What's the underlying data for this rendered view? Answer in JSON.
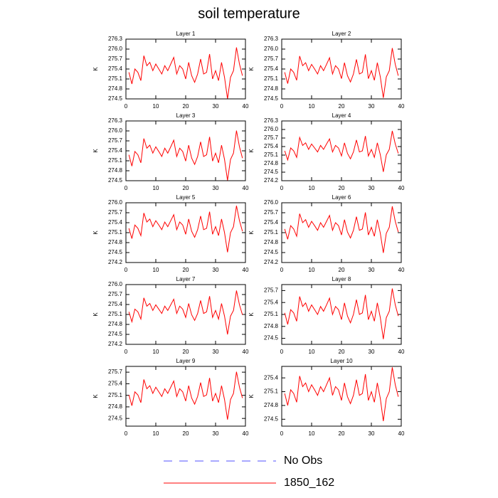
{
  "title": "soil temperature",
  "legend": [
    {
      "name": "No Obs",
      "color": "#5050ff",
      "dash": true
    },
    {
      "name": "1850_162",
      "color": "#ff0000",
      "dash": false
    }
  ],
  "chart_data": [
    {
      "type": "line",
      "title": "Layer 1",
      "ylabel": "K",
      "color": "#ff0000",
      "x": [
        1,
        2,
        3,
        4,
        5,
        6,
        7,
        8,
        9,
        10,
        11,
        12,
        13,
        14,
        15,
        16,
        17,
        18,
        19,
        20,
        21,
        22,
        23,
        24,
        25,
        26,
        27,
        28,
        29,
        30,
        31,
        32,
        33,
        34,
        35,
        36,
        37,
        38,
        39
      ],
      "values": [
        275.3,
        274.95,
        275.4,
        275.3,
        275.05,
        275.8,
        275.5,
        275.6,
        275.35,
        275.55,
        275.4,
        275.25,
        275.5,
        275.35,
        275.55,
        275.75,
        275.25,
        275.5,
        275.4,
        275.1,
        275.6,
        275.2,
        275.0,
        275.25,
        275.7,
        275.25,
        275.3,
        275.85,
        275.1,
        275.35,
        275.05,
        275.6,
        275.15,
        274.5,
        275.15,
        275.35,
        276.05,
        275.55,
        275.2
      ],
      "xlim": [
        0,
        40
      ],
      "xticks": [
        0,
        10,
        20,
        30,
        40
      ],
      "ylim": [
        274.5,
        276.3
      ],
      "yticks": [
        {
          "value": 274.5,
          "label": "274.5"
        },
        {
          "value": 274.8,
          "label": "274.8"
        },
        {
          "value": 275.1,
          "label": "275.1"
        },
        {
          "value": 275.4,
          "label": "275.4"
        },
        {
          "value": 275.7,
          "label": "275.7"
        },
        {
          "value": 276.0,
          "label": "276.0"
        },
        {
          "value": 276.3,
          "label": "276.3"
        }
      ]
    },
    {
      "type": "line",
      "title": "Layer 2",
      "ylabel": "K",
      "color": "#ff0000",
      "x": [
        1,
        2,
        3,
        4,
        5,
        6,
        7,
        8,
        9,
        10,
        11,
        12,
        13,
        14,
        15,
        16,
        17,
        18,
        19,
        20,
        21,
        22,
        23,
        24,
        25,
        26,
        27,
        28,
        29,
        30,
        31,
        32,
        33,
        34,
        35,
        36,
        37,
        38,
        39
      ],
      "values": [
        275.3,
        274.96,
        275.4,
        275.3,
        275.06,
        275.79,
        275.5,
        275.59,
        275.35,
        275.54,
        275.4,
        275.25,
        275.5,
        275.35,
        275.54,
        275.74,
        275.25,
        275.5,
        275.4,
        275.11,
        275.59,
        275.2,
        275.01,
        275.25,
        275.69,
        275.25,
        275.3,
        275.84,
        275.11,
        275.35,
        275.06,
        275.59,
        275.16,
        274.53,
        275.16,
        275.35,
        276.03,
        275.54,
        275.2
      ],
      "xlim": [
        0,
        40
      ],
      "xticks": [
        0,
        10,
        20,
        30,
        40
      ],
      "ylim": [
        274.5,
        276.3
      ],
      "yticks": [
        {
          "value": 274.5,
          "label": "274.5"
        },
        {
          "value": 274.8,
          "label": "274.8"
        },
        {
          "value": 275.1,
          "label": "275.1"
        },
        {
          "value": 275.4,
          "label": "275.4"
        },
        {
          "value": 275.7,
          "label": "275.7"
        },
        {
          "value": 276.0,
          "label": "276.0"
        },
        {
          "value": 276.3,
          "label": "276.3"
        }
      ]
    },
    {
      "type": "line",
      "title": "Layer 3",
      "ylabel": "K",
      "color": "#ff0000",
      "x": [
        1,
        2,
        3,
        4,
        5,
        6,
        7,
        8,
        9,
        10,
        11,
        12,
        13,
        14,
        15,
        16,
        17,
        18,
        19,
        20,
        21,
        22,
        23,
        24,
        25,
        26,
        27,
        28,
        29,
        30,
        31,
        32,
        33,
        34,
        35,
        36,
        37,
        38,
        39
      ],
      "values": [
        275.28,
        274.94,
        275.38,
        275.28,
        275.04,
        275.77,
        275.48,
        275.57,
        275.33,
        275.52,
        275.38,
        275.23,
        275.48,
        275.33,
        275.52,
        275.72,
        275.23,
        275.48,
        275.38,
        275.09,
        275.57,
        275.18,
        274.99,
        275.23,
        275.67,
        275.23,
        275.28,
        275.82,
        275.09,
        275.33,
        275.04,
        275.57,
        275.14,
        274.51,
        275.14,
        275.33,
        276.01,
        275.52,
        275.18
      ],
      "xlim": [
        0,
        40
      ],
      "xticks": [
        0,
        10,
        20,
        30,
        40
      ],
      "ylim": [
        274.5,
        276.3
      ],
      "yticks": [
        {
          "value": 274.5,
          "label": "274.5"
        },
        {
          "value": 274.8,
          "label": "274.8"
        },
        {
          "value": 275.1,
          "label": "275.1"
        },
        {
          "value": 275.4,
          "label": "275.4"
        },
        {
          "value": 275.7,
          "label": "275.7"
        },
        {
          "value": 276.0,
          "label": "276.0"
        },
        {
          "value": 276.3,
          "label": "276.3"
        }
      ]
    },
    {
      "type": "line",
      "title": "Layer 4",
      "ylabel": "K",
      "color": "#ff0000",
      "x": [
        1,
        2,
        3,
        4,
        5,
        6,
        7,
        8,
        9,
        10,
        11,
        12,
        13,
        14,
        15,
        16,
        17,
        18,
        19,
        20,
        21,
        22,
        23,
        24,
        25,
        26,
        27,
        28,
        29,
        30,
        31,
        32,
        33,
        34,
        35,
        36,
        37,
        38,
        39
      ],
      "values": [
        275.25,
        274.93,
        275.35,
        275.25,
        275.02,
        275.72,
        275.44,
        275.53,
        275.3,
        275.49,
        275.35,
        275.21,
        275.44,
        275.3,
        275.49,
        275.67,
        275.21,
        275.44,
        275.35,
        275.07,
        275.53,
        275.16,
        274.97,
        275.21,
        275.63,
        275.21,
        275.25,
        275.77,
        275.07,
        275.3,
        275.02,
        275.53,
        275.11,
        274.51,
        275.11,
        275.3,
        275.95,
        275.49,
        275.16
      ],
      "xlim": [
        0,
        40
      ],
      "xticks": [
        0,
        10,
        20,
        30,
        40
      ],
      "ylim": [
        274.2,
        276.3
      ],
      "yticks": [
        {
          "value": 274.2,
          "label": "274.2"
        },
        {
          "value": 274.5,
          "label": "274.5"
        },
        {
          "value": 274.8,
          "label": "274.8"
        },
        {
          "value": 275.1,
          "label": "275.1"
        },
        {
          "value": 275.4,
          "label": "275.4"
        },
        {
          "value": 275.7,
          "label": "275.7"
        },
        {
          "value": 276.0,
          "label": "276.0"
        },
        {
          "value": 276.3,
          "label": "276.3"
        }
      ]
    },
    {
      "type": "line",
      "title": "Layer 5",
      "ylabel": "K",
      "color": "#ff0000",
      "x": [
        1,
        2,
        3,
        4,
        5,
        6,
        7,
        8,
        9,
        10,
        11,
        12,
        13,
        14,
        15,
        16,
        17,
        18,
        19,
        20,
        21,
        22,
        23,
        24,
        25,
        26,
        27,
        28,
        29,
        30,
        31,
        32,
        33,
        34,
        35,
        36,
        37,
        38,
        39
      ],
      "values": [
        275.23,
        274.92,
        275.33,
        275.23,
        275.01,
        275.69,
        275.42,
        275.51,
        275.28,
        275.46,
        275.33,
        275.19,
        275.42,
        275.28,
        275.46,
        275.64,
        275.19,
        275.42,
        275.33,
        275.05,
        275.51,
        275.14,
        274.96,
        275.19,
        275.6,
        275.19,
        275.23,
        275.73,
        275.05,
        275.28,
        275.01,
        275.51,
        275.1,
        274.51,
        275.1,
        275.28,
        275.91,
        275.46,
        275.14
      ],
      "xlim": [
        0,
        40
      ],
      "xticks": [
        0,
        10,
        20,
        30,
        40
      ],
      "ylim": [
        274.2,
        276.0
      ],
      "yticks": [
        {
          "value": 274.2,
          "label": "274.2"
        },
        {
          "value": 274.5,
          "label": "274.5"
        },
        {
          "value": 274.8,
          "label": "274.8"
        },
        {
          "value": 275.1,
          "label": "275.1"
        },
        {
          "value": 275.4,
          "label": "275.4"
        },
        {
          "value": 275.7,
          "label": "275.7"
        },
        {
          "value": 276.0,
          "label": "276.0"
        }
      ]
    },
    {
      "type": "line",
      "title": "Layer 6",
      "ylabel": "K",
      "color": "#ff0000",
      "x": [
        1,
        2,
        3,
        4,
        5,
        6,
        7,
        8,
        9,
        10,
        11,
        12,
        13,
        14,
        15,
        16,
        17,
        18,
        19,
        20,
        21,
        22,
        23,
        24,
        25,
        26,
        27,
        28,
        29,
        30,
        31,
        32,
        33,
        34,
        35,
        36,
        37,
        38,
        39
      ],
      "values": [
        275.21,
        274.9,
        275.31,
        275.21,
        274.99,
        275.67,
        275.4,
        275.49,
        275.26,
        275.44,
        275.31,
        275.17,
        275.4,
        275.26,
        275.44,
        275.62,
        275.17,
        275.4,
        275.31,
        275.03,
        275.49,
        275.12,
        274.94,
        275.17,
        275.58,
        275.17,
        275.21,
        275.71,
        275.03,
        275.26,
        274.99,
        275.49,
        275.08,
        274.49,
        275.08,
        275.26,
        275.89,
        275.44,
        275.12
      ],
      "xlim": [
        0,
        40
      ],
      "xticks": [
        0,
        10,
        20,
        30,
        40
      ],
      "ylim": [
        274.2,
        276.0
      ],
      "yticks": [
        {
          "value": 274.2,
          "label": "274.2"
        },
        {
          "value": 274.5,
          "label": "274.5"
        },
        {
          "value": 274.8,
          "label": "274.8"
        },
        {
          "value": 275.1,
          "label": "275.1"
        },
        {
          "value": 275.4,
          "label": "275.4"
        },
        {
          "value": 275.7,
          "label": "275.7"
        },
        {
          "value": 276.0,
          "label": "276.0"
        }
      ]
    },
    {
      "type": "line",
      "title": "Layer 7",
      "ylabel": "K",
      "color": "#ff0000",
      "x": [
        1,
        2,
        3,
        4,
        5,
        6,
        7,
        8,
        9,
        10,
        11,
        12,
        13,
        14,
        15,
        16,
        17,
        18,
        19,
        20,
        21,
        22,
        23,
        24,
        25,
        26,
        27,
        28,
        29,
        30,
        31,
        32,
        33,
        34,
        35,
        36,
        37,
        38,
        39
      ],
      "values": [
        275.18,
        274.88,
        275.26,
        275.18,
        274.96,
        275.6,
        275.35,
        275.43,
        275.22,
        275.39,
        275.26,
        275.13,
        275.35,
        275.22,
        275.39,
        275.56,
        275.13,
        275.35,
        275.26,
        275.01,
        275.43,
        275.09,
        274.92,
        275.13,
        275.52,
        275.13,
        275.18,
        275.65,
        275.01,
        275.22,
        274.96,
        275.43,
        275.05,
        274.5,
        275.05,
        275.22,
        275.82,
        275.39,
        275.09
      ],
      "xlim": [
        0,
        40
      ],
      "xticks": [
        0,
        10,
        20,
        30,
        40
      ],
      "ylim": [
        274.2,
        276.0
      ],
      "yticks": [
        {
          "value": 274.2,
          "label": "274.2"
        },
        {
          "value": 274.5,
          "label": "274.5"
        },
        {
          "value": 274.8,
          "label": "274.8"
        },
        {
          "value": 275.1,
          "label": "275.1"
        },
        {
          "value": 275.4,
          "label": "275.4"
        },
        {
          "value": 275.7,
          "label": "275.7"
        },
        {
          "value": 276.0,
          "label": "276.0"
        }
      ]
    },
    {
      "type": "line",
      "title": "Layer 8",
      "ylabel": "K",
      "color": "#ff0000",
      "x": [
        1,
        2,
        3,
        4,
        5,
        6,
        7,
        8,
        9,
        10,
        11,
        12,
        13,
        14,
        15,
        16,
        17,
        18,
        19,
        20,
        21,
        22,
        23,
        24,
        25,
        26,
        27,
        28,
        29,
        30,
        31,
        32,
        33,
        34,
        35,
        36,
        37,
        38,
        39
      ],
      "values": [
        275.14,
        274.85,
        275.22,
        275.14,
        274.93,
        275.55,
        275.3,
        275.39,
        275.18,
        275.34,
        275.22,
        275.1,
        275.3,
        275.18,
        275.34,
        275.51,
        275.1,
        275.3,
        275.22,
        274.97,
        275.39,
        275.06,
        274.89,
        275.1,
        275.47,
        275.1,
        275.14,
        275.59,
        274.97,
        275.18,
        274.93,
        275.39,
        275.02,
        274.48,
        275.02,
        275.18,
        275.75,
        275.34,
        275.06
      ],
      "xlim": [
        0,
        40
      ],
      "xticks": [
        0,
        10,
        20,
        30,
        40
      ],
      "ylim": [
        274.35,
        275.85
      ],
      "yticks": [
        {
          "value": 274.5,
          "label": "274.5"
        },
        {
          "value": 274.8,
          "label": "274.8"
        },
        {
          "value": 275.1,
          "label": "275.1"
        },
        {
          "value": 275.4,
          "label": "275.4"
        },
        {
          "value": 275.7,
          "label": "275.7"
        }
      ]
    },
    {
      "type": "line",
      "title": "Layer 9",
      "ylabel": "K",
      "color": "#ff0000",
      "x": [
        1,
        2,
        3,
        4,
        5,
        6,
        7,
        8,
        9,
        10,
        11,
        12,
        13,
        14,
        15,
        16,
        17,
        18,
        19,
        20,
        21,
        22,
        23,
        24,
        25,
        26,
        27,
        28,
        29,
        30,
        31,
        32,
        33,
        34,
        35,
        36,
        37,
        38,
        39
      ],
      "values": [
        275.11,
        274.83,
        275.19,
        275.11,
        274.91,
        275.51,
        275.27,
        275.35,
        275.15,
        275.31,
        275.19,
        275.07,
        275.27,
        275.15,
        275.31,
        275.47,
        275.07,
        275.27,
        275.19,
        274.95,
        275.35,
        275.03,
        274.87,
        275.07,
        275.43,
        275.07,
        275.11,
        275.55,
        274.95,
        275.15,
        274.91,
        275.35,
        274.99,
        274.47,
        274.99,
        275.15,
        275.71,
        275.31,
        275.03
      ],
      "xlim": [
        0,
        40
      ],
      "xticks": [
        0,
        10,
        20,
        30,
        40
      ],
      "ylim": [
        274.3,
        275.85
      ],
      "yticks": [
        {
          "value": 274.5,
          "label": "274.5"
        },
        {
          "value": 274.8,
          "label": "274.8"
        },
        {
          "value": 275.1,
          "label": "275.1"
        },
        {
          "value": 275.4,
          "label": "275.4"
        },
        {
          "value": 275.7,
          "label": "275.7"
        }
      ]
    },
    {
      "type": "line",
      "title": "Layer 10",
      "ylabel": "K",
      "color": "#ff0000",
      "x": [
        1,
        2,
        3,
        4,
        5,
        6,
        7,
        8,
        9,
        10,
        11,
        12,
        13,
        14,
        15,
        16,
        17,
        18,
        19,
        20,
        21,
        22,
        23,
        24,
        25,
        26,
        27,
        28,
        29,
        30,
        31,
        32,
        33,
        34,
        35,
        36,
        37,
        38,
        39
      ],
      "values": [
        275.06,
        274.8,
        275.14,
        275.06,
        274.87,
        275.44,
        275.21,
        275.29,
        275.1,
        275.25,
        275.14,
        275.02,
        275.21,
        275.1,
        275.25,
        275.4,
        275.02,
        275.21,
        275.14,
        274.91,
        275.29,
        274.99,
        274.84,
        275.02,
        275.36,
        275.02,
        275.06,
        275.48,
        274.91,
        275.1,
        274.87,
        275.29,
        274.95,
        274.46,
        274.95,
        275.1,
        275.63,
        275.25,
        274.99
      ],
      "xlim": [
        0,
        40
      ],
      "xticks": [
        0,
        10,
        20,
        30,
        40
      ],
      "ylim": [
        274.35,
        275.65
      ],
      "yticks": [
        {
          "value": 274.5,
          "label": "274.5"
        },
        {
          "value": 274.8,
          "label": "274.8"
        },
        {
          "value": 275.1,
          "label": "275.1"
        },
        {
          "value": 275.4,
          "label": "275.4"
        }
      ]
    }
  ]
}
